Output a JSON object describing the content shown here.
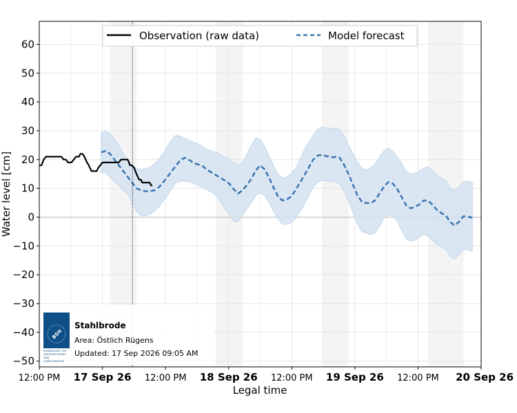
{
  "chart_data": {
    "type": "line",
    "xlabel": "Legal time",
    "ylabel": "Water level [cm]",
    "x_range_hours": [
      12,
      162
    ],
    "ylim": [
      -52,
      68
    ],
    "y_ticks": [
      60,
      50,
      40,
      30,
      20,
      10,
      0,
      -10,
      -20,
      -30,
      -40,
      -50
    ],
    "x_ticks": [
      {
        "label": "12:00 PM",
        "hour": 12,
        "bold": false
      },
      {
        "label": "17 Sep 26",
        "hour": 24,
        "bold": true
      },
      {
        "label": "12:00 PM",
        "hour": 36,
        "bold": false
      },
      {
        "label": "18 Sep 26",
        "hour": 48,
        "bold": true
      },
      {
        "label": "12:00 PM",
        "hour": 60,
        "bold": false
      },
      {
        "label": "19 Sep 26",
        "hour": 72,
        "bold": true
      },
      {
        "label": "12:00 PM",
        "hour": 84,
        "bold": false
      },
      {
        "label": "20 Sep 26",
        "hour": 96,
        "bold": true
      }
    ],
    "night_bands_hours": [
      [
        16,
        22
      ],
      [
        40,
        46
      ],
      [
        64,
        70
      ],
      [
        88,
        96
      ]
    ],
    "now_hour": 21.08,
    "legend": {
      "placement": "top-center",
      "entries": [
        {
          "label": "Observation (raw data)",
          "color": "#000000",
          "style": "solid"
        },
        {
          "label": "Model forecast",
          "color": "#3a72b0",
          "style": "dashed"
        }
      ]
    },
    "series": [
      {
        "name": "Observation (raw data)",
        "color": "#000000",
        "points": [
          [
            0,
            18
          ],
          [
            0.5,
            18
          ],
          [
            1,
            20
          ],
          [
            1.5,
            21
          ],
          [
            2,
            21
          ],
          [
            4,
            21
          ],
          [
            5,
            21
          ],
          [
            5.5,
            20
          ],
          [
            6,
            20
          ],
          [
            6.5,
            19
          ],
          [
            7.3,
            19
          ],
          [
            7.8,
            20
          ],
          [
            8.3,
            21
          ],
          [
            9,
            21
          ],
          [
            9.3,
            22
          ],
          [
            9.8,
            22
          ],
          [
            10.2,
            21
          ],
          [
            10.5,
            20
          ],
          [
            10.8,
            19
          ],
          [
            11.2,
            18
          ],
          [
            11.5,
            17
          ],
          [
            11.8,
            16
          ],
          [
            13,
            16
          ],
          [
            13.3,
            17
          ],
          [
            13.8,
            18
          ],
          [
            14.3,
            19
          ],
          [
            18,
            19
          ],
          [
            18.5,
            20
          ],
          [
            20,
            20
          ],
          [
            20.3,
            19
          ],
          [
            20.5,
            18
          ],
          [
            21,
            18
          ],
          [
            21.5,
            17
          ],
          [
            22,
            15
          ],
          [
            22.3,
            14
          ],
          [
            22.6,
            13
          ],
          [
            23,
            13
          ],
          [
            23.3,
            12
          ],
          [
            24,
            12
          ],
          [
            25,
            12
          ],
          [
            25.3,
            11
          ],
          [
            25.6,
            11
          ]
        ]
      },
      {
        "name": "Model forecast",
        "color": "#3a72b0",
        "points": [
          [
            14,
            22.5
          ],
          [
            15,
            23
          ],
          [
            16,
            22
          ],
          [
            17,
            20
          ],
          [
            18,
            18
          ],
          [
            19,
            16
          ],
          [
            20,
            14
          ],
          [
            21,
            12
          ],
          [
            22,
            10
          ],
          [
            23,
            9.3
          ],
          [
            24,
            9
          ],
          [
            25,
            9
          ],
          [
            26,
            9.3
          ],
          [
            27,
            10.3
          ],
          [
            28,
            12
          ],
          [
            29,
            14
          ],
          [
            30,
            16
          ],
          [
            31,
            18
          ],
          [
            32,
            20
          ],
          [
            33,
            20.6
          ],
          [
            34,
            19.8
          ],
          [
            35,
            18.7
          ],
          [
            36,
            18.3
          ],
          [
            37,
            17.7
          ],
          [
            38,
            16.4
          ],
          [
            39,
            15.5
          ],
          [
            40,
            14.6
          ],
          [
            41,
            13.6
          ],
          [
            42,
            12.7
          ],
          [
            43,
            11.6
          ],
          [
            44,
            9.7
          ],
          [
            45,
            8.2
          ],
          [
            46,
            9.3
          ],
          [
            47,
            11.2
          ],
          [
            48,
            13.3
          ],
          [
            49,
            16.2
          ],
          [
            50,
            18
          ],
          [
            51,
            16.6
          ],
          [
            52,
            13.7
          ],
          [
            53,
            10.3
          ],
          [
            54,
            7.3
          ],
          [
            55,
            5.8
          ],
          [
            56,
            6.1
          ],
          [
            57,
            7.2
          ],
          [
            58,
            9.4
          ],
          [
            59,
            12
          ],
          [
            60,
            14.6
          ],
          [
            61,
            17.3
          ],
          [
            62,
            20
          ],
          [
            63,
            21.4
          ],
          [
            64,
            21.6
          ],
          [
            65,
            21.2
          ],
          [
            66,
            20.8
          ],
          [
            67,
            20.9
          ],
          [
            68,
            20.6
          ],
          [
            69,
            18.1
          ],
          [
            70,
            14.9
          ],
          [
            71,
            11.2
          ],
          [
            72,
            7.6
          ],
          [
            73,
            5.3
          ],
          [
            74,
            4.9
          ],
          [
            75,
            4.9
          ],
          [
            76,
            5.8
          ],
          [
            77,
            8.2
          ],
          [
            78,
            10.6
          ],
          [
            79,
            12.2
          ],
          [
            80,
            11.7
          ],
          [
            81,
            9.8
          ],
          [
            82,
            7
          ],
          [
            83,
            4.2
          ],
          [
            84,
            3.1
          ],
          [
            85,
            3.5
          ],
          [
            86,
            4.4
          ],
          [
            87,
            5.8
          ],
          [
            88,
            5.7
          ],
          [
            89,
            4.3
          ],
          [
            90,
            2.5
          ],
          [
            91,
            1.4
          ],
          [
            92,
            0.6
          ],
          [
            93,
            -1.7
          ],
          [
            94,
            -2.9
          ],
          [
            95,
            -1.6
          ],
          [
            96,
            0.3
          ],
          [
            97,
            0.2
          ],
          [
            98,
            -0.2
          ]
        ]
      },
      {
        "name": "",
        "type": "area",
        "color": "#d3e3f1",
        "upper": [
          [
            14,
            29
          ],
          [
            15,
            30
          ],
          [
            16,
            29
          ],
          [
            17,
            27
          ],
          [
            18,
            25
          ],
          [
            19,
            22
          ],
          [
            20,
            20
          ],
          [
            21,
            18
          ],
          [
            22,
            17
          ],
          [
            23,
            16.5
          ],
          [
            24,
            16.8
          ],
          [
            25,
            17.3
          ],
          [
            26,
            18.5
          ],
          [
            27,
            20
          ],
          [
            28,
            22
          ],
          [
            29,
            24.5
          ],
          [
            30,
            27
          ],
          [
            31,
            28.5
          ],
          [
            32,
            28
          ],
          [
            33,
            27.3
          ],
          [
            34,
            26.6
          ],
          [
            35,
            26
          ],
          [
            36,
            25.3
          ],
          [
            37,
            24.5
          ],
          [
            38,
            23.5
          ],
          [
            39,
            23
          ],
          [
            40,
            22.5
          ],
          [
            41,
            21.7
          ],
          [
            42,
            20.8
          ],
          [
            43,
            20
          ],
          [
            44,
            19
          ],
          [
            45,
            18
          ],
          [
            46,
            19
          ],
          [
            47,
            22
          ],
          [
            48,
            25
          ],
          [
            49,
            27.5
          ],
          [
            50,
            27
          ],
          [
            51,
            24.5
          ],
          [
            52,
            21
          ],
          [
            53,
            18
          ],
          [
            54,
            15
          ],
          [
            55,
            13.5
          ],
          [
            56,
            14
          ],
          [
            57,
            15
          ],
          [
            58,
            17
          ],
          [
            59,
            20
          ],
          [
            60,
            23.5
          ],
          [
            61,
            26
          ],
          [
            62,
            28.5
          ],
          [
            63,
            30.5
          ],
          [
            64,
            31.3
          ],
          [
            65,
            31
          ],
          [
            66,
            30.7
          ],
          [
            67,
            31
          ],
          [
            68,
            30.5
          ],
          [
            69,
            28
          ],
          [
            70,
            25
          ],
          [
            71,
            22
          ],
          [
            72,
            19
          ],
          [
            73,
            17
          ],
          [
            74,
            16.5
          ],
          [
            75,
            17
          ],
          [
            76,
            18.5
          ],
          [
            77,
            21
          ],
          [
            78,
            23
          ],
          [
            79,
            24
          ],
          [
            80,
            23
          ],
          [
            81,
            21
          ],
          [
            82,
            18.7
          ],
          [
            83,
            16
          ],
          [
            84,
            15
          ],
          [
            85,
            15.2
          ],
          [
            86,
            16
          ],
          [
            87,
            17
          ],
          [
            88,
            17.5
          ],
          [
            89,
            16
          ],
          [
            90,
            14.7
          ],
          [
            91,
            13.5
          ],
          [
            92,
            12.7
          ],
          [
            93,
            10
          ],
          [
            94,
            9.3
          ],
          [
            95,
            10.5
          ],
          [
            96,
            12.3
          ],
          [
            97,
            12.5
          ],
          [
            98,
            12
          ]
        ],
        "lower": [
          [
            14,
            15.5
          ],
          [
            15,
            15.5
          ],
          [
            16,
            14
          ],
          [
            17,
            12.5
          ],
          [
            18,
            11
          ],
          [
            19,
            9.5
          ],
          [
            20,
            8
          ],
          [
            21,
            5
          ],
          [
            22,
            2
          ],
          [
            23,
            0.6
          ],
          [
            24,
            0.5
          ],
          [
            25,
            1
          ],
          [
            26,
            2
          ],
          [
            27,
            3.5
          ],
          [
            28,
            5.5
          ],
          [
            29,
            7.5
          ],
          [
            30,
            10
          ],
          [
            31,
            12
          ],
          [
            32,
            12.5
          ],
          [
            33,
            12.5
          ],
          [
            34,
            12.2
          ],
          [
            35,
            11.7
          ],
          [
            36,
            11
          ],
          [
            37,
            10.3
          ],
          [
            38,
            9.5
          ],
          [
            39,
            8.7
          ],
          [
            40,
            7.5
          ],
          [
            41,
            5.5
          ],
          [
            42,
            3
          ],
          [
            43,
            1
          ],
          [
            44,
            -1.5
          ],
          [
            45,
            -1.5
          ],
          [
            46,
            0.5
          ],
          [
            47,
            3
          ],
          [
            48,
            5
          ],
          [
            49,
            7.5
          ],
          [
            50,
            8.5
          ],
          [
            51,
            7.5
          ],
          [
            52,
            5
          ],
          [
            53,
            2
          ],
          [
            54,
            -0.5
          ],
          [
            55,
            -2.5
          ],
          [
            56,
            -2.5
          ],
          [
            57,
            -2
          ],
          [
            58,
            -0.5
          ],
          [
            59,
            2
          ],
          [
            60,
            4.5
          ],
          [
            61,
            7.5
          ],
          [
            62,
            10.5
          ],
          [
            63,
            12
          ],
          [
            64,
            12.7
          ],
          [
            65,
            12.7
          ],
          [
            66,
            12.3
          ],
          [
            67,
            12.3
          ],
          [
            68,
            11.5
          ],
          [
            69,
            9
          ],
          [
            70,
            5.5
          ],
          [
            71,
            1.5
          ],
          [
            72,
            -2.5
          ],
          [
            73,
            -5
          ],
          [
            74,
            -5.5
          ],
          [
            75,
            -6
          ],
          [
            76,
            -5.5
          ],
          [
            77,
            -3
          ],
          [
            78,
            -0.5
          ],
          [
            79,
            1
          ],
          [
            80,
            0.5
          ],
          [
            81,
            -1.5
          ],
          [
            82,
            -4.5
          ],
          [
            83,
            -7.5
          ],
          [
            84,
            -8.3
          ],
          [
            85,
            -8
          ],
          [
            86,
            -7
          ],
          [
            87,
            -6
          ],
          [
            88,
            -6.5
          ],
          [
            89,
            -8
          ],
          [
            90,
            -9.5
          ],
          [
            91,
            -10.5
          ],
          [
            92,
            -11
          ],
          [
            93,
            -13.7
          ],
          [
            94,
            -14.5
          ],
          [
            95,
            -13
          ],
          [
            96,
            -11.3
          ],
          [
            97,
            -11.3
          ],
          [
            98,
            -12
          ]
        ]
      }
    ]
  },
  "info_box": {
    "logo_text": "BSH",
    "logo_caption": [
      "BUNDESAMT FÜR",
      "SEESCHIFFFAHRT",
      "UND",
      "HYDROGRAPHIE"
    ],
    "station": "Stahlbrode",
    "area": "Area: Östlich Rügens",
    "updated": "Updated: 17 Sep 2026 09:05 AM"
  }
}
